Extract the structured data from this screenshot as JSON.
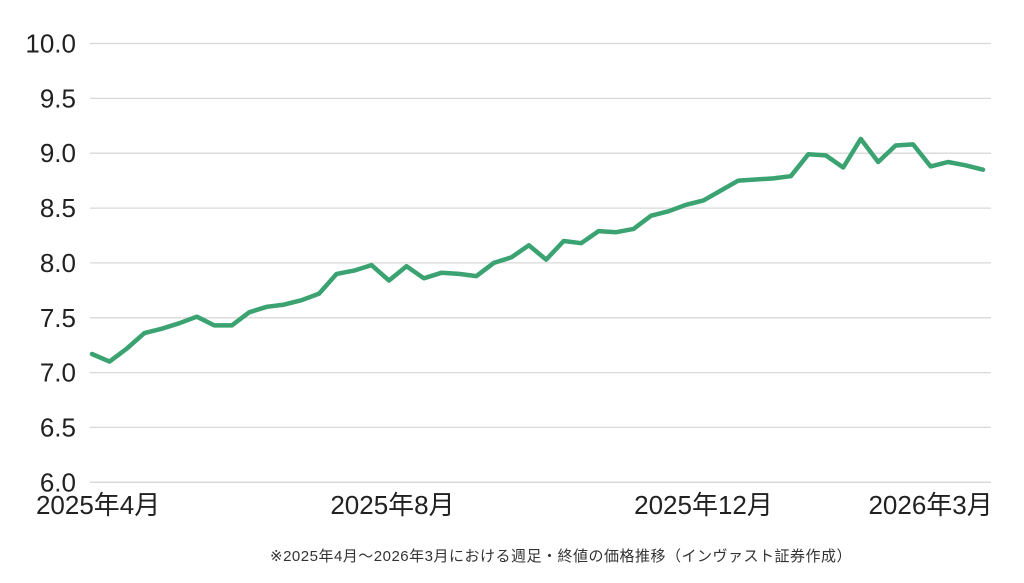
{
  "caption": "※2025年4月～2026年3月における週足・終値の価格推移（インヴァスト証券作成）",
  "colors": {
    "line": "#3BA272",
    "grid": "#D8D8D8",
    "axis_text": "#212121",
    "caption_text": "#333333",
    "background": "#FFFFFF"
  },
  "chart_data": {
    "type": "line",
    "title": "",
    "xlabel": "",
    "ylabel": "",
    "x_unit": "week",
    "period_label": "2025年4月～2026年3月",
    "grid": "horizontal-only",
    "legend": "none",
    "y_axis": {
      "min": 6.0,
      "max": 10.0,
      "step": 0.5,
      "tick_labels": [
        "6.0",
        "6.5",
        "7.0",
        "7.5",
        "8.0",
        "8.5",
        "9.0",
        "9.5",
        "10.0"
      ]
    },
    "x_ticks": [
      {
        "label": "2025年4月",
        "week_index": 0.35
      },
      {
        "label": "2025年8月",
        "week_index": 17.2
      },
      {
        "label": "2025年12月",
        "week_index": 35.0
      },
      {
        "label": "2026年3月",
        "week_index": 48.0
      }
    ],
    "series": [
      {
        "name": "週足・終値",
        "color": "#3BA272",
        "values": [
          7.17,
          7.1,
          7.22,
          7.36,
          7.4,
          7.45,
          7.51,
          7.43,
          7.43,
          7.55,
          7.6,
          7.62,
          7.66,
          7.72,
          7.9,
          7.93,
          7.98,
          7.84,
          7.97,
          7.86,
          7.91,
          7.9,
          7.88,
          8.0,
          8.05,
          8.16,
          8.03,
          8.2,
          8.18,
          8.29,
          8.28,
          8.31,
          8.43,
          8.47,
          8.53,
          8.57,
          8.66,
          8.75,
          8.76,
          8.77,
          8.79,
          8.99,
          8.98,
          8.87,
          9.13,
          8.92,
          9.07,
          9.08,
          8.88,
          8.92,
          8.89,
          8.85
        ]
      }
    ]
  }
}
